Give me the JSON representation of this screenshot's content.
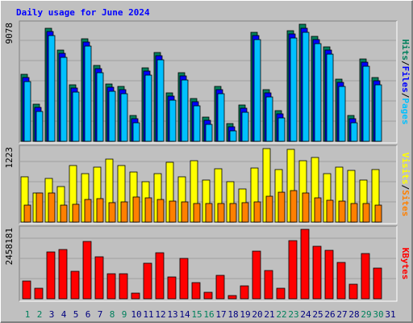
{
  "chart_data": {
    "type": "bar",
    "title": "Daily usage for June 2024",
    "categories": [
      "1",
      "2",
      "3",
      "4",
      "5",
      "6",
      "7",
      "8",
      "9",
      "10",
      "11",
      "12",
      "13",
      "14",
      "15",
      "16",
      "17",
      "18",
      "19",
      "20",
      "21",
      "22",
      "23",
      "24",
      "25",
      "26",
      "27",
      "28",
      "29",
      "30",
      "31"
    ],
    "category_colors": [
      "#00805c",
      "#00805c",
      "#00007f",
      "#00007f",
      "#00007f",
      "#00007f",
      "#00007f",
      "#00805c",
      "#00805c",
      "#00007f",
      "#00007f",
      "#00007f",
      "#00007f",
      "#00007f",
      "#00805c",
      "#00805c",
      "#00007f",
      "#00007f",
      "#00007f",
      "#00007f",
      "#00007f",
      "#00805c",
      "#00805c",
      "#00007f",
      "#00007f",
      "#00007f",
      "#00007f",
      "#00007f",
      "#00805c",
      "#00805c",
      "#00007f"
    ],
    "legend_separator": "/",
    "panels": [
      {
        "ylim": [
          0,
          9078
        ],
        "yticks": [
          9078
        ],
        "series": [
          {
            "name": "Hits",
            "color": "#00805c",
            "values": [
              5196,
              2880,
              8764,
              7074,
              4382,
              7950,
              5884,
              4445,
              4257,
              2003,
              5697,
              6886,
              3756,
              5321,
              3318,
              1878,
              4257,
              1377,
              2817,
              8451,
              4006,
              2379,
              8576,
              9078,
              8138,
              7324,
              4820,
              2003,
              6385,
              4945,
              null
            ]
          },
          {
            "name": "Files",
            "color": "#0000ff",
            "values": [
              4946,
              2630,
              8514,
              6824,
              4132,
              7700,
              5634,
              4195,
              4007,
              1753,
              5447,
              6636,
              3506,
              5071,
              3068,
              1628,
              4007,
              1127,
              2567,
              8201,
              3756,
              2129,
              8326,
              8766,
              7888,
              7074,
              4570,
              1753,
              6135,
              4695,
              null
            ]
          },
          {
            "name": "Pages",
            "color": "#00c0ff",
            "values": [
              4631,
              2315,
              8199,
              6509,
              3817,
              7385,
              5319,
              3880,
              3692,
              1438,
              5132,
              6321,
              3191,
              4756,
              2753,
              1313,
              3692,
              812,
              2252,
              7886,
              3441,
              1814,
              8011,
              8451,
              7573,
              6759,
              4255,
              1438,
              5820,
              4380,
              null
            ]
          }
        ]
      },
      {
        "ylim": [
          0,
          1223
        ],
        "yticks": [
          1223
        ],
        "series": [
          {
            "name": "Visits",
            "color": "#ffff00",
            "values": [
              753,
              484,
              726,
              591,
              941,
              806,
              914,
              1048,
              941,
              833,
              672,
              806,
              995,
              753,
              1021,
              699,
              887,
              672,
              551,
              900,
              1223,
              874,
              1210,
              1021,
              1075,
              806,
              914,
              860,
              699,
              874,
              null
            ]
          },
          {
            "name": "Sites",
            "color": "#ff8000",
            "values": [
              282,
              484,
              484,
              282,
              296,
              376,
              390,
              323,
              336,
              417,
              403,
              376,
              349,
              336,
              309,
              309,
              309,
              309,
              323,
              336,
              430,
              497,
              524,
              484,
              403,
              363,
              349,
              309,
              309,
              282,
              null
            ]
          }
        ]
      },
      {
        "ylim": [
          0,
          2458181
        ],
        "yticks": [
          2458181
        ],
        "series": [
          {
            "name": "KBytes",
            "color": "#ff0000",
            "values": [
              629000,
              372000,
              1658000,
              1744000,
              972000,
              2029000,
              1486000,
              886000,
              886000,
              200000,
              1258000,
              1629000,
              772000,
              1429000,
              572000,
              229000,
              829000,
              114000,
              457000,
              1686000,
              1000000,
              372000,
              2058000,
              2458181,
              1858000,
              1715000,
              1286000,
              515000,
              1601000,
              1086000,
              null
            ]
          }
        ]
      }
    ]
  }
}
